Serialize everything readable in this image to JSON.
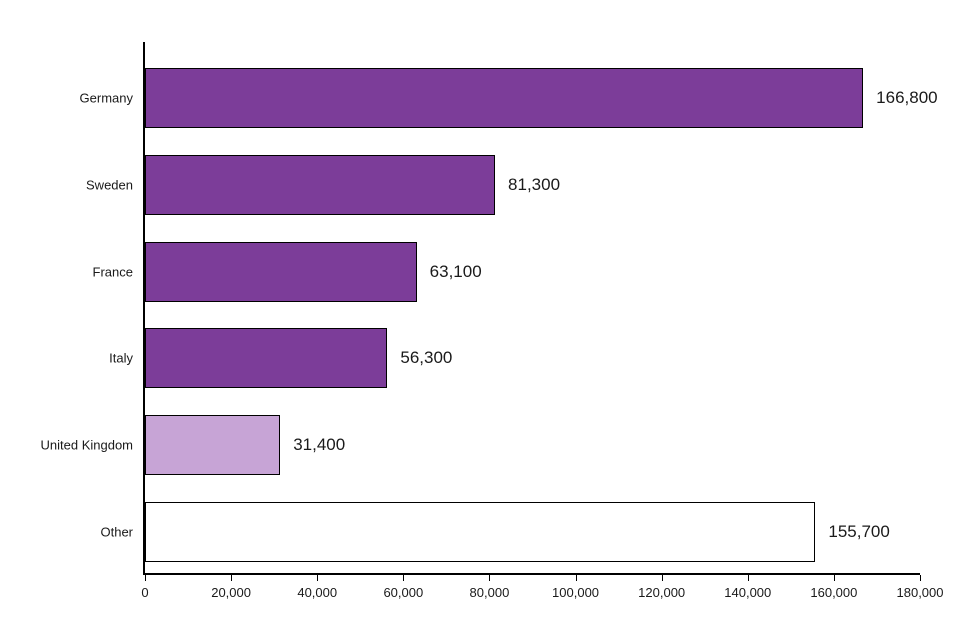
{
  "chart_data": {
    "type": "bar",
    "orientation": "horizontal",
    "categories": [
      "Germany",
      "Sweden",
      "France",
      "Italy",
      "United Kingdom",
      "Other"
    ],
    "values": [
      166800,
      81300,
      63100,
      56300,
      31400,
      155700
    ],
    "value_labels": [
      "166,800",
      "81,300",
      "63,100",
      "56,300",
      "31,400",
      "155,700"
    ],
    "bar_colors": [
      "#7c3d99",
      "#7c3d99",
      "#7c3d99",
      "#7c3d99",
      "#c7a4d6",
      "#ffffff"
    ],
    "bar_border_color": "#000000",
    "axis_color": "#000000",
    "text_color": "#1a1a1a",
    "xlim": [
      0,
      180000
    ],
    "x_ticks": [
      0,
      20000,
      40000,
      60000,
      80000,
      100000,
      120000,
      140000,
      160000,
      180000
    ],
    "x_tick_labels": [
      "0",
      "20,000",
      "40,000",
      "60,000",
      "80,000",
      "100,000",
      "120,000",
      "140,000",
      "160,000",
      "180,000"
    ],
    "grid": false,
    "legend": false
  }
}
